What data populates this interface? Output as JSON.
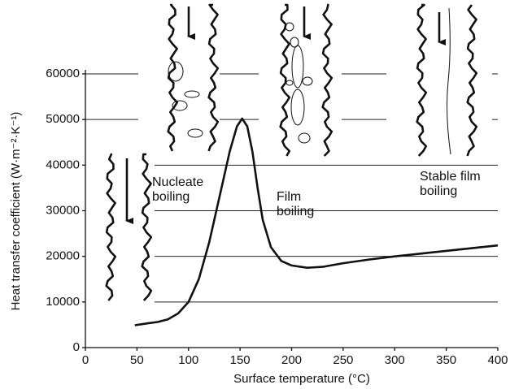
{
  "chart_data": {
    "type": "line",
    "x_label": "Surface temperature (°C)",
    "y_label": "Heat transfer coefficient (W·m⁻²·K⁻¹)",
    "x": [
      48,
      60,
      70,
      80,
      90,
      100,
      110,
      120,
      130,
      140,
      147,
      152,
      157,
      162,
      167,
      172,
      180,
      190,
      200,
      215,
      230,
      250,
      275,
      300,
      325,
      350,
      375,
      400
    ],
    "series": [
      {
        "color": "#111111",
        "values": [
          4900,
          5300,
          5600,
          6200,
          7500,
          10000,
          15000,
          23000,
          33000,
          43000,
          48500,
          50200,
          48500,
          43000,
          35000,
          28000,
          22000,
          19000,
          18000,
          17500,
          17700,
          18500,
          19300,
          20000,
          20600,
          21200,
          21800,
          22400
        ]
      }
    ],
    "xlim": [
      0,
      400
    ],
    "xticks": [
      0,
      50,
      100,
      150,
      200,
      250,
      300,
      350,
      400
    ],
    "ylim": [
      0,
      60000
    ],
    "yticks": [
      0,
      10000,
      20000,
      30000,
      40000,
      50000,
      60000
    ],
    "grid": true,
    "annotations": [
      [
        "Nucleate",
        "boiling"
      ],
      [
        "Film",
        "boiling"
      ],
      [
        "Stable film",
        "boiling"
      ]
    ]
  }
}
